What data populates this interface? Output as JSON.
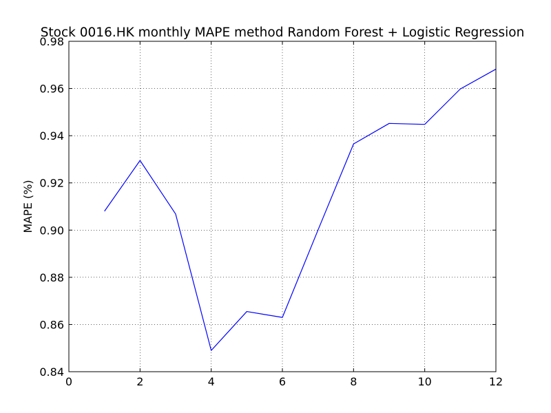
{
  "chart_data": {
    "type": "line",
    "title": "Stock 0016.HK monthly MAPE method Random Forest + Logistic Regression",
    "xlabel": "",
    "ylabel": "MAPE (%)",
    "xlim": [
      0,
      12
    ],
    "ylim": [
      0.84,
      0.98
    ],
    "xticks": [
      "0",
      "2",
      "4",
      "6",
      "8",
      "10",
      "12"
    ],
    "yticks": [
      "0.84",
      "0.86",
      "0.88",
      "0.90",
      "0.92",
      "0.94",
      "0.96",
      "0.98"
    ],
    "grid": true,
    "series": [
      {
        "color": "#0000ff",
        "x": [
          1,
          2,
          3,
          4,
          5,
          6,
          7,
          8,
          9,
          10,
          11,
          12
        ],
        "y": [
          0.908,
          0.9295,
          0.9068,
          0.849,
          0.8655,
          0.863,
          0.9,
          0.9365,
          0.9452,
          0.9448,
          0.9598,
          0.9682
        ]
      }
    ]
  }
}
